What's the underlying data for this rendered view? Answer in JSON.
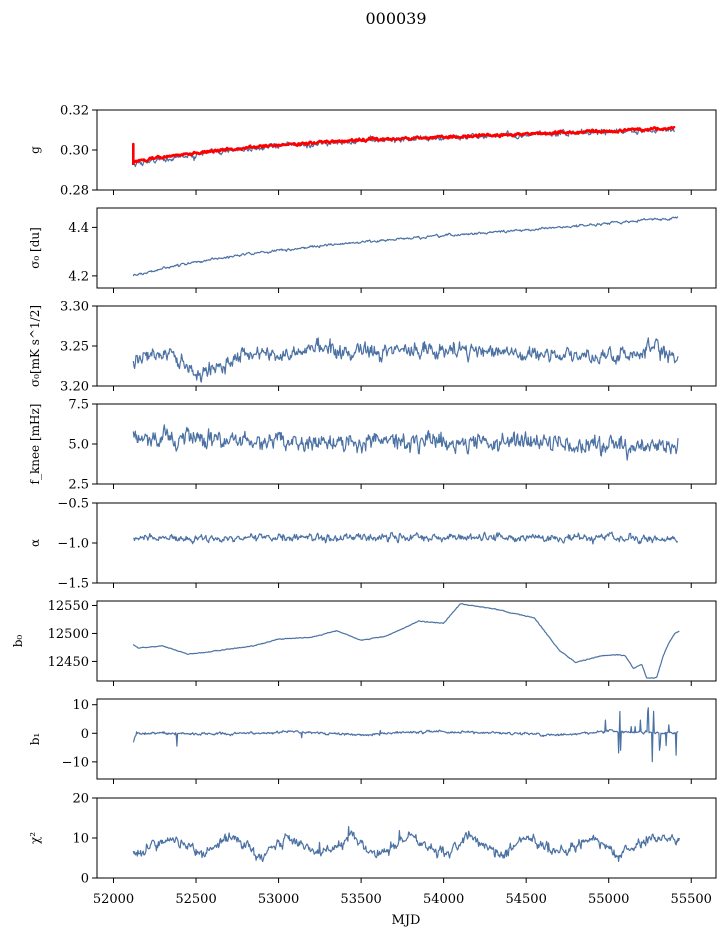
{
  "figure": {
    "title": "000039",
    "xlabel": "MJD"
  },
  "colors": {
    "series": "#4c72a4",
    "fit": "#ff0000",
    "axis": "#000000"
  },
  "x_axis": {
    "range": [
      51900,
      55650
    ],
    "ticks": [
      52000,
      52500,
      53000,
      53500,
      54000,
      54500,
      55000,
      55500
    ],
    "tick_labels": [
      "52000",
      "52500",
      "53000",
      "53500",
      "54000",
      "54500",
      "55000",
      "55500"
    ]
  },
  "chart_data": [
    {
      "type": "line",
      "name": "g",
      "ylabel": "g",
      "ylim": [
        0.28,
        0.32
      ],
      "yticks": [
        0.28,
        0.3,
        0.32
      ],
      "ytick_labels": [
        "0.28",
        "0.30",
        "0.32"
      ],
      "noise": 0.0012,
      "spikes": 0.003,
      "series": [
        {
          "name": "",
          "color": "#4c72a4",
          "x": [
            52120,
            52300,
            52600,
            53000,
            53500,
            54000,
            54500,
            55000,
            55400
          ],
          "values": [
            0.293,
            0.2955,
            0.299,
            0.302,
            0.3045,
            0.306,
            0.3075,
            0.309,
            0.3105
          ]
        },
        {
          "name": "",
          "color": "#ff0000",
          "x": [
            52120,
            52300,
            52600,
            53000,
            53500,
            54000,
            54500,
            55000,
            55400
          ],
          "values": [
            0.294,
            0.2965,
            0.2995,
            0.3025,
            0.305,
            0.3065,
            0.308,
            0.3095,
            0.311
          ]
        }
      ]
    },
    {
      "type": "line",
      "name": "sigma0",
      "ylabel": "σ₀ [du]",
      "ylim": [
        4.15,
        4.48
      ],
      "yticks": [
        4.2,
        4.4
      ],
      "ytick_labels": [
        "4.2",
        "4.4"
      ],
      "noise": 0.004,
      "series": [
        {
          "name": "",
          "color": "#4c72a4",
          "x": [
            52120,
            52400,
            52800,
            53200,
            53600,
            54000,
            54400,
            54800,
            55200,
            55420
          ],
          "values": [
            4.2,
            4.245,
            4.29,
            4.32,
            4.345,
            4.365,
            4.385,
            4.405,
            4.43,
            4.44
          ]
        }
      ]
    },
    {
      "type": "line",
      "name": "sigma0-flux",
      "ylabel": "σ₀[mK s^1/2]",
      "ylim": [
        3.2,
        3.3
      ],
      "yticks": [
        3.2,
        3.25,
        3.3
      ],
      "ytick_labels": [
        "3.20",
        "3.25",
        "3.30"
      ],
      "noise": 0.008,
      "series": [
        {
          "name": "",
          "color": "#4c72a4",
          "x": [
            52120,
            52350,
            52500,
            52800,
            53000,
            53250,
            53500,
            53800,
            54200,
            54600,
            54900,
            55100,
            55300,
            55420
          ],
          "values": [
            3.235,
            3.24,
            3.215,
            3.24,
            3.235,
            3.25,
            3.24,
            3.245,
            3.245,
            3.24,
            3.235,
            3.24,
            3.245,
            3.23
          ]
        }
      ]
    },
    {
      "type": "line",
      "name": "fknee",
      "ylabel": "f_knee [mHz]",
      "ylim": [
        2.5,
        7.5
      ],
      "yticks": [
        2.5,
        5.0,
        7.5
      ],
      "ytick_labels": [
        "2.5",
        "5.0",
        "7.5"
      ],
      "noise": 0.45,
      "series": [
        {
          "name": "",
          "color": "#4c72a4",
          "x": [
            52120,
            52500,
            53000,
            53500,
            54000,
            54500,
            55000,
            55420
          ],
          "values": [
            5.3,
            5.3,
            5.2,
            5.1,
            5.2,
            5.1,
            4.9,
            4.8
          ]
        }
      ]
    },
    {
      "type": "line",
      "name": "alpha",
      "ylabel": "α",
      "ylim": [
        -1.5,
        -0.5
      ],
      "yticks": [
        -1.5,
        -1.0,
        -0.5
      ],
      "ytick_labels": [
        "−1.5",
        "−1.0",
        "−0.5"
      ],
      "noise": 0.04,
      "series": [
        {
          "name": "",
          "color": "#4c72a4",
          "x": [
            52120,
            52600,
            53200,
            53800,
            54400,
            55000,
            55300,
            55420
          ],
          "values": [
            -0.95,
            -0.94,
            -0.93,
            -0.93,
            -0.93,
            -0.94,
            -0.96,
            -0.95
          ]
        }
      ]
    },
    {
      "type": "line",
      "name": "b0",
      "ylabel": "b₀",
      "ylim": [
        12415,
        12558
      ],
      "yticks": [
        12450,
        12500,
        12550
      ],
      "ytick_labels": [
        "12450",
        "12500",
        "12550"
      ],
      "noise": 0.6,
      "series": [
        {
          "name": "",
          "color": "#4c72a4",
          "x": [
            52120,
            52150,
            52300,
            52450,
            52600,
            52850,
            53000,
            53200,
            53350,
            53500,
            53650,
            53850,
            54000,
            54100,
            54300,
            54550,
            54700,
            54800,
            54950,
            55050,
            55100,
            55150,
            55200,
            55230,
            55290,
            55330,
            55360,
            55400,
            55430
          ],
          "values": [
            12480,
            12474,
            12478,
            12463,
            12468,
            12478,
            12490,
            12493,
            12505,
            12488,
            12495,
            12522,
            12518,
            12553,
            12544,
            12528,
            12470,
            12448,
            12460,
            12462,
            12460,
            12438,
            12445,
            12420,
            12421,
            12460,
            12480,
            12500,
            12505
          ]
        }
      ]
    },
    {
      "type": "line",
      "name": "b1",
      "ylabel": "b₁",
      "ylim": [
        -16,
        12
      ],
      "yticks": [
        -10,
        0,
        10
      ],
      "ytick_labels": [
        "−10",
        "0",
        "10"
      ],
      "noise": 0.4,
      "spikes": 5,
      "series": [
        {
          "name": "",
          "color": "#4c72a4",
          "x": [
            52120,
            52140,
            52300,
            52700,
            53100,
            53500,
            53900,
            54300,
            54700,
            55000,
            55200,
            55420
          ],
          "values": [
            -3,
            0,
            0,
            -0.3,
            0.5,
            -0.5,
            0.6,
            0.2,
            -0.6,
            0.8,
            0.3,
            0.2
          ]
        }
      ]
    },
    {
      "type": "line",
      "name": "chi2",
      "ylabel": "χ²",
      "ylim": [
        0,
        20
      ],
      "yticks": [
        0,
        10,
        20
      ],
      "ytick_labels": [
        "0",
        "10",
        "20"
      ],
      "noise": 1.1,
      "spikes": 3,
      "series": [
        {
          "name": "",
          "color": "#4c72a4",
          "x": [
            52120,
            52350,
            52550,
            52700,
            52900,
            53050,
            53250,
            53450,
            53600,
            53800,
            54000,
            54150,
            54350,
            54500,
            54700,
            54900,
            55050,
            55250,
            55400,
            55430
          ],
          "values": [
            6,
            10,
            6,
            10.5,
            5.5,
            10.5,
            6,
            10.5,
            5.5,
            10.5,
            6,
            10.5,
            5.5,
            10.5,
            6,
            10,
            5.5,
            10,
            10.5,
            9
          ]
        }
      ]
    }
  ]
}
